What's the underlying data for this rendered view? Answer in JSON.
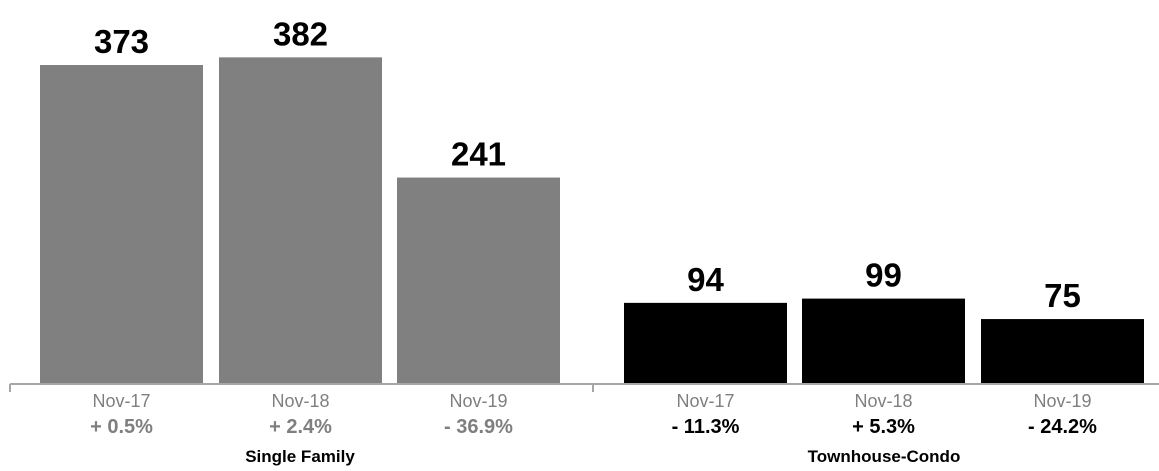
{
  "chart_data": {
    "type": "bar",
    "ylim": [
      0,
      400
    ],
    "groups": [
      {
        "name": "Single Family",
        "color": "#808080",
        "change_color": "#7f7f7f",
        "bars": [
          {
            "category": "Nov-17",
            "value": 373,
            "label": "373",
            "change": "+ 0.5%"
          },
          {
            "category": "Nov-18",
            "value": 382,
            "label": "382",
            "change": "+ 2.4%"
          },
          {
            "category": "Nov-19",
            "value": 241,
            "label": "241",
            "change": "- 36.9%"
          }
        ]
      },
      {
        "name": "Townhouse-Condo",
        "color": "#000000",
        "change_color": "#000000",
        "bars": [
          {
            "category": "Nov-17",
            "value": 94,
            "label": "94",
            "change": "- 11.3%"
          },
          {
            "category": "Nov-18",
            "value": 99,
            "label": "99",
            "change": "+ 5.3%"
          },
          {
            "category": "Nov-19",
            "value": 75,
            "label": "75",
            "change": "- 24.2%"
          }
        ]
      }
    ],
    "grid": false,
    "legend": "none"
  }
}
